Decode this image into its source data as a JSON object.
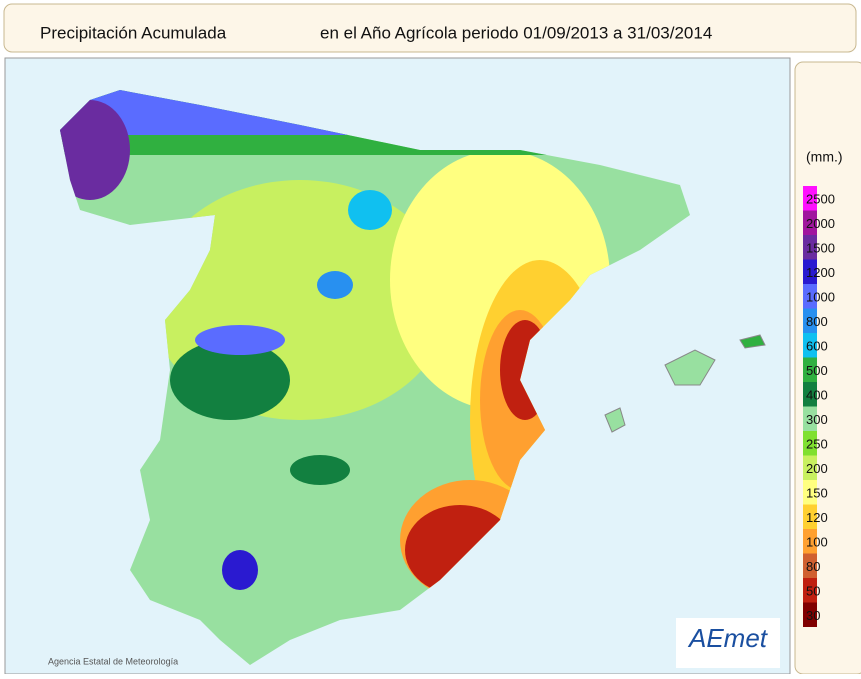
{
  "title": {
    "main": "Precipitación Acumulada",
    "period": "en el Año Agrícola periodo 01/09/2013 a 31/03/2014"
  },
  "legend": {
    "unit": "(mm.)",
    "items": [
      {
        "label": "2500",
        "color": "#ff10ff"
      },
      {
        "label": "2000",
        "color": "#a0169e"
      },
      {
        "label": "1500",
        "color": "#6a2ca0"
      },
      {
        "label": "1200",
        "color": "#2a1ad0"
      },
      {
        "label": "1000",
        "color": "#5a6cff"
      },
      {
        "label": "800",
        "color": "#2890f0"
      },
      {
        "label": "600",
        "color": "#10c0f0"
      },
      {
        "label": "500",
        "color": "#30b040"
      },
      {
        "label": "400",
        "color": "#128040"
      },
      {
        "label": "300",
        "color": "#98e0a0"
      },
      {
        "label": "250",
        "color": "#80e030"
      },
      {
        "label": "200",
        "color": "#c8f060"
      },
      {
        "label": "150",
        "color": "#ffff80"
      },
      {
        "label": "120",
        "color": "#ffd030"
      },
      {
        "label": "100",
        "color": "#ffa030"
      },
      {
        "label": "80",
        "color": "#d06030"
      },
      {
        "label": "50",
        "color": "#c02010"
      },
      {
        "label": "30",
        "color": "#800000"
      }
    ]
  },
  "credit": "Agencia Estatal de Meteorología",
  "logo": "AEmet"
}
